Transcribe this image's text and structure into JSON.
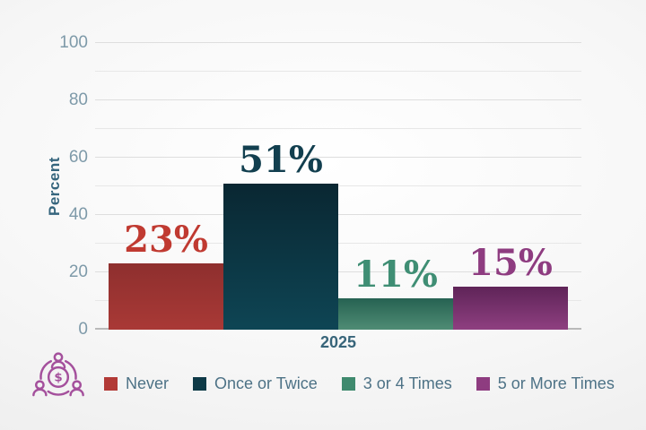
{
  "chart_data": {
    "type": "bar",
    "title": "",
    "categories": [
      "Never",
      "Once or Twice",
      "3 or 4 Times",
      "5 or More Times"
    ],
    "values": [
      23,
      51,
      11,
      15
    ],
    "value_labels": [
      "23%",
      "51%",
      "11%",
      "15%"
    ],
    "xlabel": "2025",
    "ylabel": "Percent",
    "ylim": [
      0,
      100
    ],
    "ytick_step": 20,
    "grid_minor_step": 10,
    "grid": "on",
    "legend_position": "bottom",
    "bar_colors_top": [
      "#8e2f2e",
      "#0a2732",
      "#266252",
      "#5f2458"
    ],
    "bar_colors_bottom": [
      "#a93936",
      "#0e4554",
      "#4f8c74",
      "#8e3f80"
    ],
    "label_colors": [
      "#c03a31",
      "#123f4f",
      "#3f8e74",
      "#8e3c80"
    ],
    "legend": [
      {
        "label": "Never",
        "color": "#b23a36"
      },
      {
        "label": "Once or Twice",
        "color": "#0e3a47"
      },
      {
        "label": "3 or 4 Times",
        "color": "#3f8a6e"
      },
      {
        "label": "5 or More Times",
        "color": "#8e3c80"
      }
    ]
  },
  "axis": {
    "ylabel": "Percent",
    "xlabel": "2025"
  },
  "icon": {
    "name": "people-around-money-icon",
    "color": "#a4509c",
    "glyph": "$"
  }
}
